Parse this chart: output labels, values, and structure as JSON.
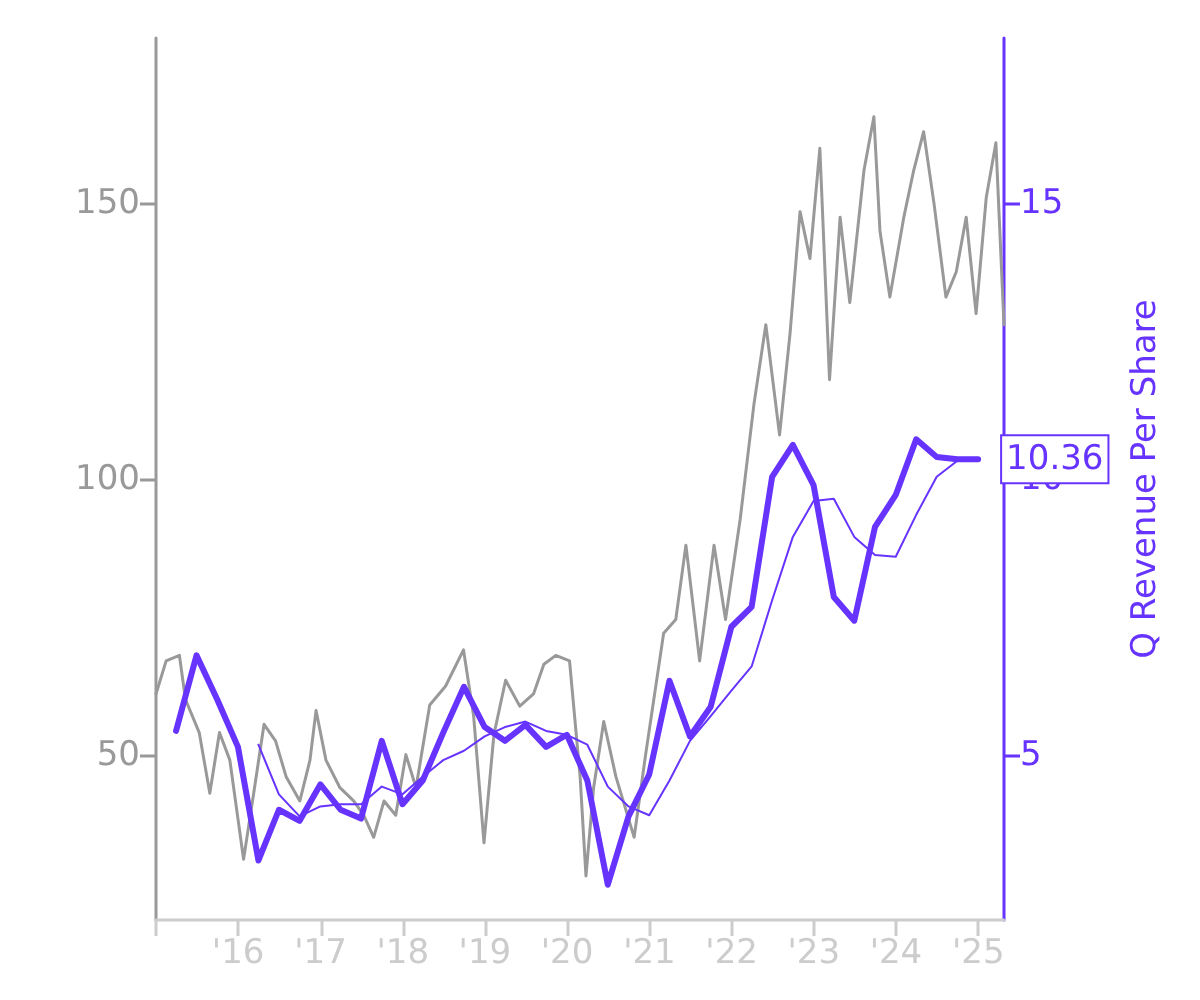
{
  "chart_data": {
    "type": "line",
    "y2label": "Q Revenue Per Share",
    "marker": "none",
    "grid": false,
    "xlim": [
      "2015-01-01",
      "2025-04-25"
    ],
    "xticks": [
      {
        "value": "2015-01-01",
        "label": null
      },
      {
        "value": "2016-01-01",
        "label": "'16"
      },
      {
        "value": "2017-01-01",
        "label": "'17"
      },
      {
        "value": "2018-01-01",
        "label": "'18"
      },
      {
        "value": "2019-01-01",
        "label": "'19"
      },
      {
        "value": "2020-01-01",
        "label": "'20"
      },
      {
        "value": "2021-01-01",
        "label": "'21"
      },
      {
        "value": "2022-01-01",
        "label": "'22"
      },
      {
        "value": "2023-01-01",
        "label": "'23"
      },
      {
        "value": "2024-01-01",
        "label": "'24"
      },
      {
        "value": "2025-01-01",
        "label": "'25"
      }
    ],
    "ylim": [
      20,
      180
    ],
    "yticks": [
      50,
      100,
      150
    ],
    "y2lim": [
      2,
      18
    ],
    "y2ticks": [
      5,
      10,
      15
    ],
    "annotations": [
      "10.36"
    ],
    "series": [
      {
        "color": "#999999",
        "x": [
          "2015-01-01",
          "2015-02-15",
          "2015-04-15",
          "2015-05-12",
          "2015-07-12",
          "2015-08-28",
          "2015-10-10",
          "2015-11-25",
          "2016-01-25",
          "2016-03-10",
          "2016-04-25",
          "2016-06-15",
          "2016-08-01",
          "2016-10-01",
          "2016-11-15",
          "2016-12-12",
          "2017-01-25",
          "2017-03-28",
          "2017-05-28",
          "2017-07-12",
          "2017-08-25",
          "2017-10-10",
          "2017-12-01",
          "2018-01-15",
          "2018-03-01",
          "2018-05-01",
          "2018-07-10",
          "2018-09-28",
          "2018-11-12",
          "2018-12-28",
          "2019-02-10",
          "2019-04-03",
          "2019-06-05",
          "2019-08-05",
          "2019-09-20",
          "2019-11-12",
          "2020-01-12",
          "2020-02-28",
          "2020-03-25",
          "2020-04-28",
          "2020-06-12",
          "2020-08-05",
          "2020-10-25",
          "2020-12-15",
          "2021-03-05",
          "2021-04-28",
          "2021-06-12",
          "2021-08-12",
          "2021-10-15",
          "2021-12-05",
          "2022-02-08",
          "2022-04-10",
          "2022-06-02",
          "2022-08-02",
          "2022-09-18",
          "2022-11-01",
          "2022-12-15",
          "2023-01-28",
          "2023-03-12",
          "2023-04-28",
          "2023-06-10",
          "2023-08-12",
          "2023-09-25",
          "2023-10-22",
          "2023-12-05",
          "2024-02-05",
          "2024-03-20",
          "2024-05-03",
          "2024-06-18",
          "2024-08-10",
          "2024-09-25",
          "2024-11-08",
          "2024-12-22",
          "2025-02-05",
          "2025-03-20",
          "2025-04-25"
        ],
        "values": [
          61,
          67,
          68,
          60,
          54,
          43,
          54,
          49,
          31,
          43,
          55.5,
          52.5,
          46,
          41.6,
          49,
          58,
          49,
          44,
          41.6,
          39,
          35,
          41.6,
          39,
          50,
          44,
          59,
          62.4,
          69,
          57,
          34,
          53.6,
          63.5,
          58.8,
          61,
          66.4,
          68,
          67,
          46,
          28,
          44,
          56,
          46,
          35,
          50,
          72,
          74.5,
          88,
          67,
          88,
          74.5,
          92.7,
          113.5,
          128,
          108,
          126.6,
          148.5,
          140,
          160,
          118,
          147.5,
          132,
          156,
          165.7,
          145,
          133,
          147.5,
          156,
          163,
          150,
          133,
          137.6,
          147.5,
          130,
          151,
          161,
          128
        ]
      },
      {
        "color": "#6633ff",
        "axis": "y2",
        "x": [
          "2015-03-31",
          "2015-06-30",
          "2015-09-30",
          "2015-12-31",
          "2016-03-31",
          "2016-06-30",
          "2016-09-30",
          "2016-12-31",
          "2017-03-31",
          "2017-06-30",
          "2017-09-30",
          "2017-12-31",
          "2018-03-31",
          "2018-06-30",
          "2018-09-30",
          "2018-12-31",
          "2019-03-31",
          "2019-06-30",
          "2019-09-30",
          "2019-12-31",
          "2020-03-31",
          "2020-06-30",
          "2020-09-30",
          "2020-12-31",
          "2021-03-31",
          "2021-06-30",
          "2021-09-30",
          "2021-12-31",
          "2022-03-31",
          "2022-06-30",
          "2022-09-30",
          "2022-12-31",
          "2023-03-31",
          "2023-06-30",
          "2023-09-30",
          "2023-12-31",
          "2024-03-31",
          "2024-06-30",
          "2024-09-30",
          "2024-12-31"
        ],
        "values": [
          5.43,
          6.8,
          6.0,
          5.14,
          3.08,
          4.0,
          3.8,
          4.46,
          4.0,
          3.84,
          5.25,
          4.1,
          4.53,
          5.4,
          6.23,
          5.5,
          5.25,
          5.54,
          5.14,
          5.36,
          4.53,
          2.64,
          3.88,
          4.64,
          6.34,
          5.33,
          5.87,
          7.32,
          7.68,
          10.04,
          10.62,
          9.89,
          7.86,
          7.43,
          9.13,
          9.71,
          10.72,
          10.4,
          10.36,
          10.36
        ]
      },
      {
        "color": "#6633ff",
        "axis": "y2",
        "x": [
          "2016-03-31",
          "2016-06-30",
          "2016-09-30",
          "2016-12-31",
          "2017-03-31",
          "2017-06-30",
          "2017-09-30",
          "2017-12-31",
          "2018-03-31",
          "2018-06-30",
          "2018-09-30",
          "2018-12-31",
          "2019-03-31",
          "2019-06-30",
          "2019-09-30",
          "2019-12-31",
          "2020-03-31",
          "2020-06-30",
          "2020-09-30",
          "2020-12-31",
          "2021-03-31",
          "2021-06-30",
          "2021-09-30",
          "2021-12-31",
          "2022-03-31",
          "2022-06-30",
          "2022-09-30",
          "2022-12-31",
          "2023-03-31",
          "2023-06-30",
          "2023-09-30",
          "2023-12-31",
          "2024-03-31",
          "2024-06-30",
          "2024-09-30",
          "2024-12-31"
        ],
        "values": [
          5.18,
          4.28,
          3.88,
          4.06,
          4.1,
          4.1,
          4.42,
          4.28,
          4.6,
          4.9,
          5.07,
          5.33,
          5.5,
          5.6,
          5.43,
          5.36,
          5.18,
          4.42,
          4.06,
          3.9,
          4.53,
          5.25,
          5.7,
          6.16,
          6.6,
          7.8,
          8.95,
          9.6,
          9.64,
          8.95,
          8.62,
          8.59,
          9.35,
          10.04,
          10.33,
          10.36
        ]
      }
    ]
  }
}
